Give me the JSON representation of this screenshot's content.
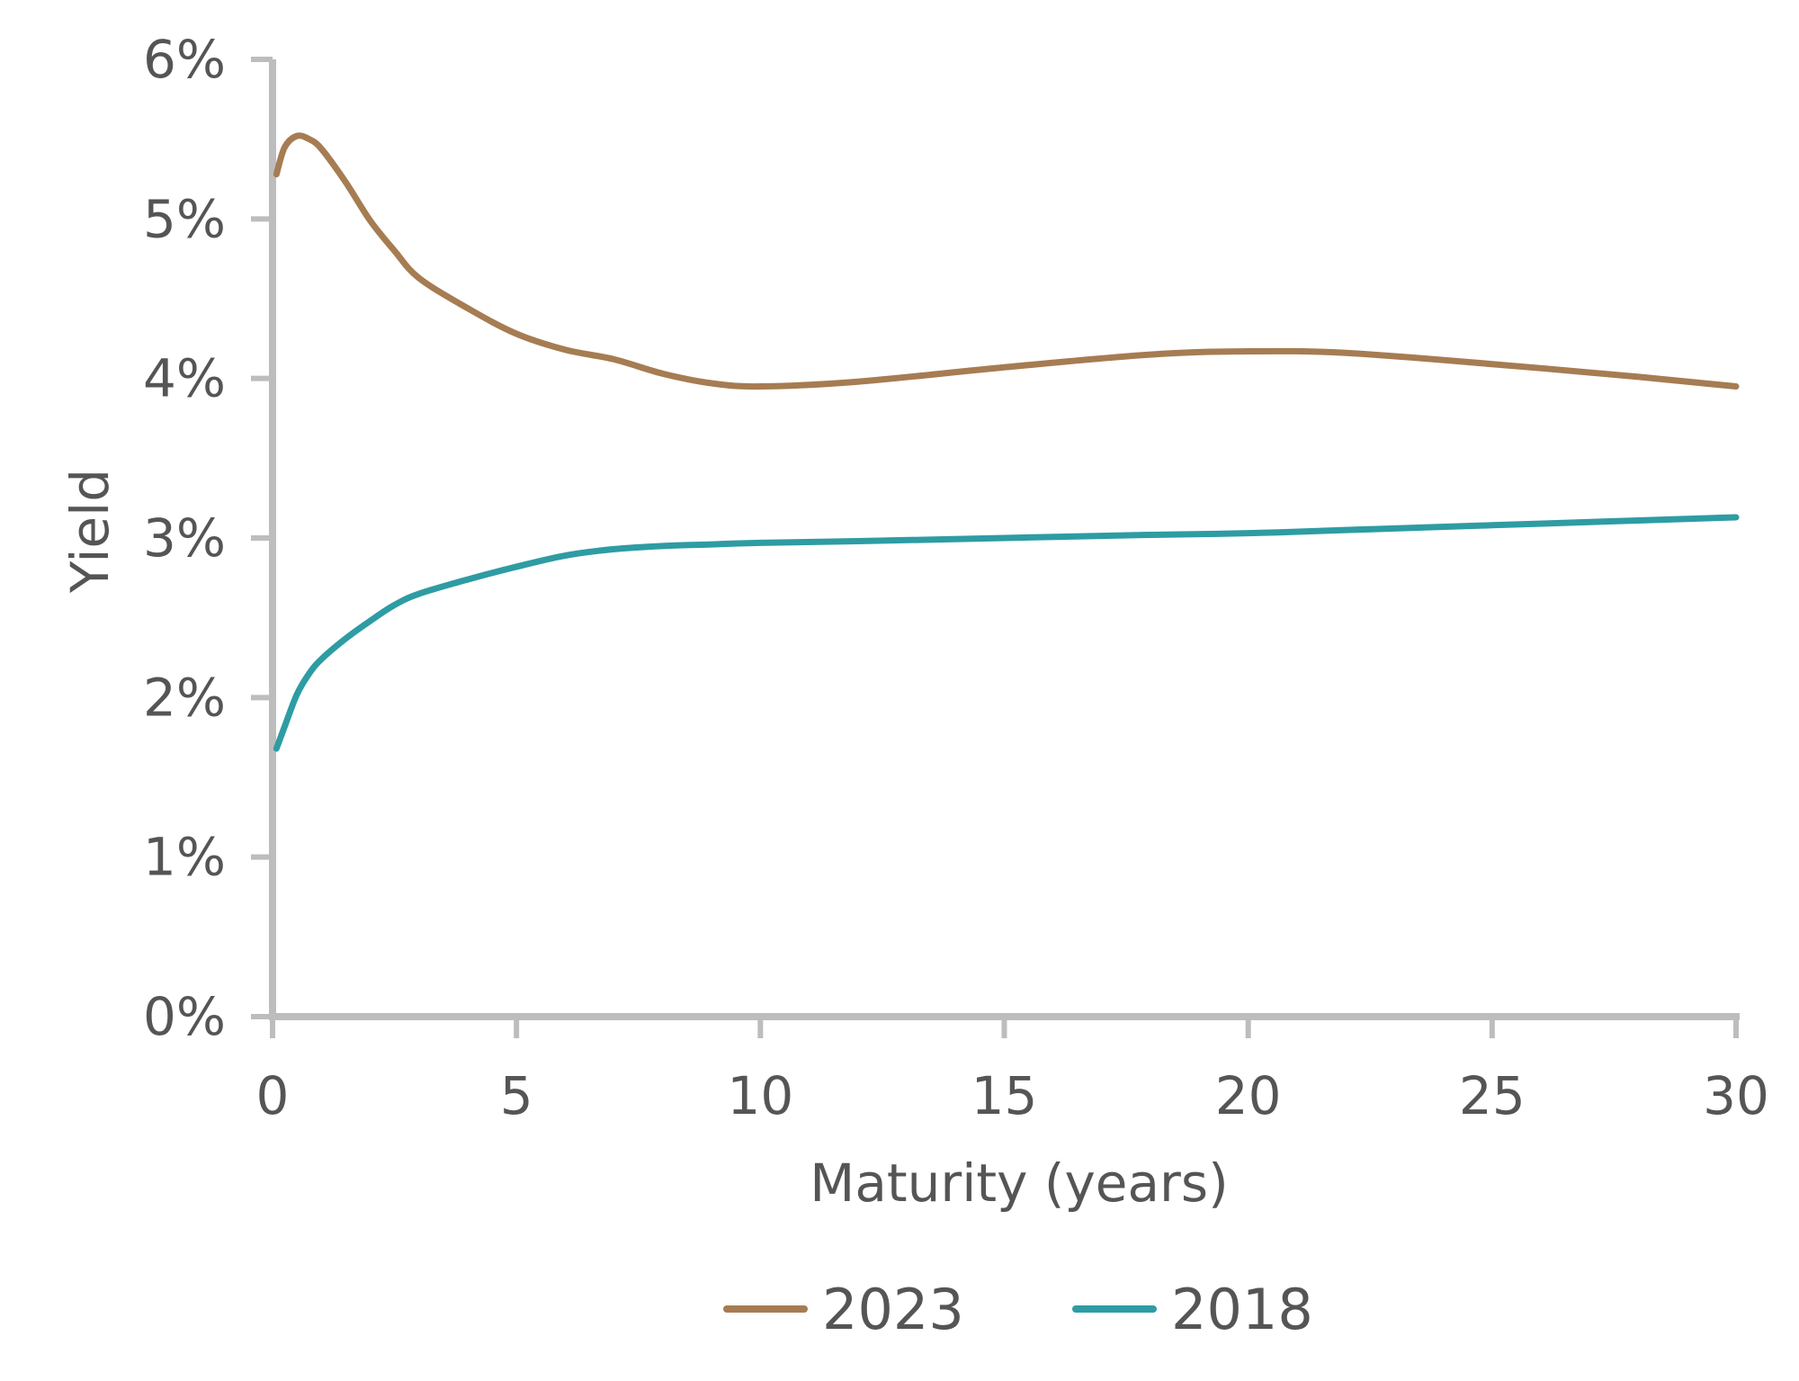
{
  "chart_data": {
    "type": "line",
    "title": "",
    "xlabel": "Maturity (years)",
    "ylabel": "Yield",
    "xlim": [
      0,
      30
    ],
    "ylim": [
      0,
      6
    ],
    "x_ticks": [
      0,
      5,
      10,
      15,
      20,
      25,
      30
    ],
    "y_ticks": [
      0,
      1,
      2,
      3,
      4,
      5,
      6
    ],
    "x_tick_labels": [
      "0",
      "5",
      "10",
      "15",
      "20",
      "25",
      "30"
    ],
    "y_tick_labels": [
      "0%",
      "1%",
      "2%",
      "3%",
      "4%",
      "5%",
      "6%"
    ],
    "grid": false,
    "legend": "bottom",
    "series": [
      {
        "name": "2023",
        "color": "#a67c52",
        "x": [
          0.08,
          0.25,
          0.5,
          0.75,
          1,
          1.5,
          2,
          2.5,
          3,
          4,
          5,
          6,
          7,
          8,
          9,
          10,
          12,
          15,
          18,
          20,
          22,
          25,
          28,
          30
        ],
        "y": [
          5.28,
          5.45,
          5.52,
          5.5,
          5.44,
          5.23,
          4.99,
          4.8,
          4.63,
          4.44,
          4.28,
          4.18,
          4.12,
          4.03,
          3.97,
          3.95,
          3.98,
          4.07,
          4.15,
          4.17,
          4.16,
          4.09,
          4.01,
          3.95
        ]
      },
      {
        "name": "2018",
        "color": "#2e9ca3",
        "x": [
          0.08,
          0.25,
          0.5,
          0.75,
          1,
          1.5,
          2,
          2.5,
          3,
          4,
          5,
          6,
          7,
          8,
          9,
          10,
          12,
          15,
          18,
          20,
          22,
          25,
          28,
          30
        ],
        "y": [
          1.68,
          1.82,
          2.02,
          2.15,
          2.24,
          2.37,
          2.48,
          2.58,
          2.65,
          2.74,
          2.82,
          2.89,
          2.93,
          2.95,
          2.96,
          2.97,
          2.98,
          3.0,
          3.02,
          3.03,
          3.05,
          3.08,
          3.11,
          3.13
        ]
      }
    ]
  }
}
